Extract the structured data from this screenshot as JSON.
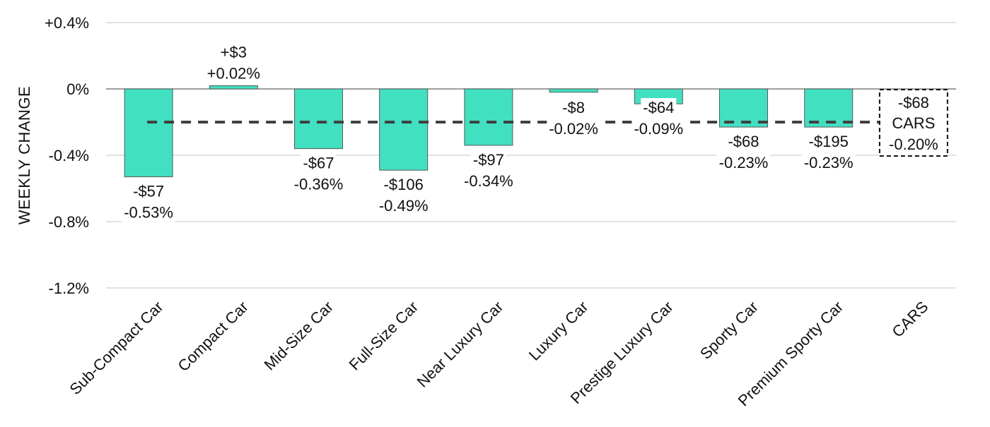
{
  "chart_data": {
    "type": "bar",
    "ylabel": "WEEKLY CHANGE",
    "ylim": [
      -1.2,
      0.4
    ],
    "yticks": [
      0.4,
      0,
      -0.4,
      -0.8,
      -1.2
    ],
    "ytick_labels": [
      "+0.4%",
      "0%",
      "-0.4%",
      "-0.8%",
      "-1.2%"
    ],
    "grid": true,
    "bar_color": "#40E0C0",
    "categories": [
      "Sub-Compact Car",
      "Compact Car",
      "Mid-Size Car",
      "Full-Size Car",
      "Near Luxury Car",
      "Luxury Car",
      "Prestige Luxury Car",
      "Sporty Car",
      "Premium Sporty Car",
      "CARS"
    ],
    "values": [
      -0.53,
      0.02,
      -0.36,
      -0.49,
      -0.34,
      -0.02,
      -0.09,
      -0.23,
      -0.23,
      null
    ],
    "dollar_labels": [
      "-$57",
      "+$3",
      "-$67",
      "-$106",
      "-$97",
      "-$8",
      "-$64",
      "-$68",
      "-$195",
      "-$68"
    ],
    "percent_labels": [
      "-0.53%",
      "+0.02%",
      "-0.36%",
      "-0.49%",
      "-0.34%",
      "-0.02%",
      "-0.09%",
      "-0.23%",
      "-0.23%",
      "-0.20%"
    ],
    "reference_line": {
      "value": -0.2,
      "style": "dashed"
    },
    "total": {
      "label": "CARS",
      "value": -0.2,
      "dollar": "-$68",
      "percent": "-0.20%"
    }
  }
}
